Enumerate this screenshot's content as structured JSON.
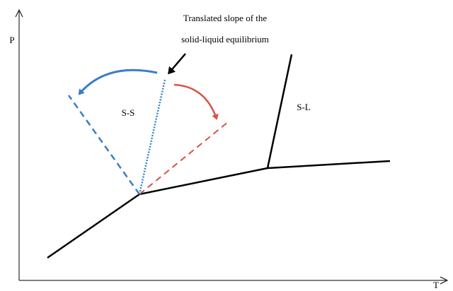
{
  "axes": {
    "y_label": "P",
    "x_label": "T"
  },
  "annotation": {
    "lines": [
      "Translated slope of the",
      "solid-liquid equilibrium"
    ]
  },
  "regions": [
    "S-S",
    "S-L"
  ]
}
